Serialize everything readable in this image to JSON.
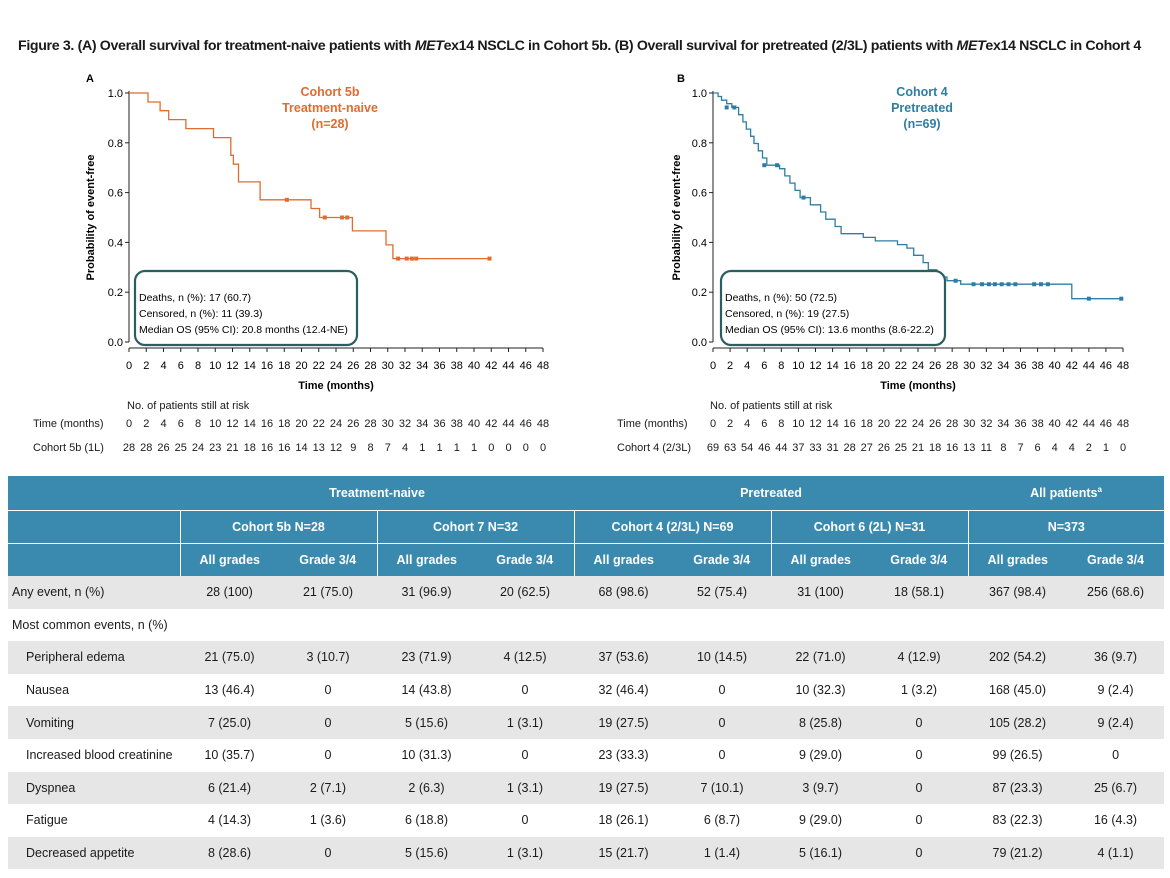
{
  "figure": {
    "title_pre": "Figure 3. (A) Overall survival for treatment-naive patients with ",
    "title_it1": "MET",
    "title_mid": "ex14 NSCLC in Cohort 5b. (B) Overall survival for pretreated (2/3L) patients with ",
    "title_it2": "MET",
    "title_post": "ex14 NSCLC in Cohort 4"
  },
  "chart_data": [
    {
      "type": "line",
      "panel_label": "A",
      "ylabel": "Probability of event-free",
      "xlabel": "Time (months)",
      "xlim": [
        0,
        48
      ],
      "ylim": [
        0,
        1
      ],
      "x_ticks": [
        0,
        2,
        4,
        6,
        8,
        10,
        12,
        14,
        16,
        18,
        20,
        22,
        24,
        26,
        28,
        30,
        32,
        34,
        36,
        38,
        40,
        42,
        44,
        46,
        48
      ],
      "y_ticks": [
        "0.0",
        "0.2",
        "0.4",
        "0.6",
        "0.8",
        "1.0"
      ],
      "color": "#e06c2e",
      "legend": [
        "Cohort 5b",
        "Treatment-naive",
        "(n=28)"
      ],
      "series": [
        {
          "steps": [
            [
              0,
              1.0
            ],
            [
              2.2,
              0.964
            ],
            [
              3.6,
              0.929
            ],
            [
              4.6,
              0.893
            ],
            [
              6.6,
              0.857
            ],
            [
              9.8,
              0.821
            ],
            [
              11.8,
              0.75
            ],
            [
              12.1,
              0.714
            ],
            [
              12.7,
              0.643
            ],
            [
              15.2,
              0.571
            ],
            [
              21.1,
              0.536
            ],
            [
              22.1,
              0.5
            ],
            [
              25.9,
              0.446
            ],
            [
              29.8,
              0.39
            ],
            [
              30.6,
              0.335
            ],
            [
              41.8,
              0.335
            ]
          ],
          "censors": [
            [
              18.3,
              0.571
            ],
            [
              22.7,
              0.5
            ],
            [
              24.7,
              0.5
            ],
            [
              25.3,
              0.5
            ],
            [
              31.2,
              0.335
            ],
            [
              32.2,
              0.335
            ],
            [
              32.8,
              0.335
            ],
            [
              33.3,
              0.335
            ],
            [
              41.8,
              0.335
            ]
          ]
        }
      ],
      "stats": [
        "Deaths, n (%): 17 (60.7)",
        "Censored, n (%): 11 (39.3)",
        "Median OS (95% CI): 20.8 months (12.4-NE)"
      ],
      "risk_table": {
        "header": "No. of patients still at risk",
        "time_label": "Time (months)",
        "row_label": "Cohort 5b (1L)",
        "times": [
          "0",
          "2",
          "4",
          "6",
          "8",
          "10",
          "12",
          "14",
          "16",
          "18",
          "20",
          "22",
          "24",
          "26",
          "28",
          "30",
          "32",
          "34",
          "36",
          "38",
          "40",
          "42",
          "44",
          "46",
          "48"
        ],
        "counts": [
          "28",
          "28",
          "26",
          "25",
          "24",
          "23",
          "21",
          "18",
          "16",
          "16",
          "14",
          "13",
          "12",
          "9",
          "8",
          "7",
          "4",
          "1",
          "1",
          "1",
          "1",
          "0",
          "0",
          "0",
          "0"
        ]
      }
    },
    {
      "type": "line",
      "panel_label": "B",
      "ylabel": "Probability of event-free",
      "xlabel": "Time (months)",
      "xlim": [
        0,
        48
      ],
      "ylim": [
        0,
        1
      ],
      "x_ticks": [
        0,
        2,
        4,
        6,
        8,
        10,
        12,
        14,
        16,
        18,
        20,
        22,
        24,
        26,
        28,
        30,
        32,
        34,
        36,
        38,
        40,
        42,
        44,
        46,
        48
      ],
      "y_ticks": [
        "0.0",
        "0.2",
        "0.4",
        "0.6",
        "0.8",
        "1.0"
      ],
      "color": "#2e7ea3",
      "legend": [
        "Cohort 4",
        "Pretreated",
        "(n=69)"
      ],
      "series": [
        {
          "steps": [
            [
              0,
              1.0
            ],
            [
              0.6,
              0.986
            ],
            [
              1.0,
              0.971
            ],
            [
              1.6,
              0.957
            ],
            [
              2.2,
              0.942
            ],
            [
              3.0,
              0.913
            ],
            [
              3.5,
              0.884
            ],
            [
              3.9,
              0.855
            ],
            [
              4.4,
              0.826
            ],
            [
              4.8,
              0.797
            ],
            [
              5.3,
              0.768
            ],
            [
              5.8,
              0.739
            ],
            [
              6.3,
              0.71
            ],
            [
              7.8,
              0.696
            ],
            [
              8.4,
              0.667
            ],
            [
              9.0,
              0.638
            ],
            [
              9.6,
              0.609
            ],
            [
              10.2,
              0.58
            ],
            [
              11.4,
              0.551
            ],
            [
              12.6,
              0.522
            ],
            [
              13.2,
              0.493
            ],
            [
              14.3,
              0.464
            ],
            [
              15.0,
              0.435
            ],
            [
              17.6,
              0.42
            ],
            [
              19.0,
              0.406
            ],
            [
              21.6,
              0.391
            ],
            [
              22.7,
              0.377
            ],
            [
              23.5,
              0.348
            ],
            [
              24.6,
              0.319
            ],
            [
              25.2,
              0.29
            ],
            [
              26.2,
              0.261
            ],
            [
              27.4,
              0.246
            ],
            [
              29.0,
              0.232
            ],
            [
              42.0,
              0.174
            ],
            [
              47.8,
              0.174
            ]
          ],
          "censors": [
            [
              1.6,
              0.942
            ],
            [
              2.5,
              0.942
            ],
            [
              6.0,
              0.71
            ],
            [
              7.5,
              0.71
            ],
            [
              10.6,
              0.58
            ],
            [
              28.4,
              0.246
            ],
            [
              30.5,
              0.232
            ],
            [
              31.5,
              0.232
            ],
            [
              32.3,
              0.232
            ],
            [
              33.0,
              0.232
            ],
            [
              33.8,
              0.232
            ],
            [
              34.6,
              0.232
            ],
            [
              35.4,
              0.232
            ],
            [
              37.6,
              0.232
            ],
            [
              38.4,
              0.232
            ],
            [
              39.2,
              0.232
            ],
            [
              44.0,
              0.174
            ],
            [
              47.8,
              0.174
            ]
          ]
        }
      ],
      "stats": [
        "Deaths, n (%): 50 (72.5)",
        "Censored, n (%): 19 (27.5)",
        "Median OS (95% CI): 13.6 months (8.6-22.2)"
      ],
      "risk_table": {
        "header": "No. of patients still at risk",
        "time_label": "Time (months)",
        "row_label": "Cohort 4 (2/3L)",
        "times": [
          "0",
          "2",
          "4",
          "6",
          "8",
          "10",
          "12",
          "14",
          "16",
          "18",
          "20",
          "22",
          "24",
          "26",
          "28",
          "30",
          "32",
          "34",
          "36",
          "38",
          "40",
          "42",
          "44",
          "46",
          "48"
        ],
        "counts": [
          "69",
          "63",
          "54",
          "46",
          "44",
          "37",
          "33",
          "31",
          "28",
          "27",
          "26",
          "25",
          "21",
          "18",
          "16",
          "13",
          "11",
          "8",
          "7",
          "6",
          "4",
          "4",
          "2",
          "1",
          "0"
        ]
      }
    }
  ],
  "ae_table": {
    "groups": [
      "Treatment-naive",
      "Pretreated",
      "All patients",
      "a"
    ],
    "cohorts": [
      "Cohort 5b N=28",
      "Cohort 7 N=32",
      "Cohort 4 (2/3L) N=69",
      "Cohort 6 (2L) N=31",
      "N=373"
    ],
    "grade_headers": [
      "All grades",
      "Grade 3/4",
      "All grades",
      "Grade 3/4",
      "All grades",
      "Grade 3/4",
      "All grades",
      "Grade 3/4",
      "All grades",
      "Grade 3/4"
    ],
    "rows": [
      {
        "label": "Any event, n (%)",
        "indent": false,
        "values": [
          "28 (100)",
          "21 (75.0)",
          "31 (96.9)",
          "20 (62.5)",
          "68 (98.6)",
          "52 (75.4)",
          "31 (100)",
          "18 (58.1)",
          "367 (98.4)",
          "256 (68.6)"
        ]
      },
      {
        "label": "Most common events, n (%)",
        "indent": false,
        "values": [
          "",
          "",
          "",
          "",
          "",
          "",
          "",
          "",
          "",
          ""
        ]
      },
      {
        "label": "Peripheral edema",
        "indent": true,
        "values": [
          "21 (75.0)",
          "3 (10.7)",
          "23 (71.9)",
          "4 (12.5)",
          "37 (53.6)",
          "10 (14.5)",
          "22 (71.0)",
          "4 (12.9)",
          "202 (54.2)",
          "36 (9.7)"
        ]
      },
      {
        "label": "Nausea",
        "indent": true,
        "values": [
          "13 (46.4)",
          "0",
          "14 (43.8)",
          "0",
          "32 (46.4)",
          "0",
          "10 (32.3)",
          "1 (3.2)",
          "168 (45.0)",
          "9 (2.4)"
        ]
      },
      {
        "label": "Vomiting",
        "indent": true,
        "values": [
          "7 (25.0)",
          "0",
          "5 (15.6)",
          "1 (3.1)",
          "19 (27.5)",
          "0",
          "8 (25.8)",
          "0",
          "105 (28.2)",
          "9 (2.4)"
        ]
      },
      {
        "label": "Increased blood creatinine",
        "indent": true,
        "values": [
          "10 (35.7)",
          "0",
          "10 (31.3)",
          "0",
          "23 (33.3)",
          "0",
          "9 (29.0)",
          "0",
          "99 (26.5)",
          "0"
        ]
      },
      {
        "label": "Dyspnea",
        "indent": true,
        "values": [
          "6 (21.4)",
          "2 (7.1)",
          "2 (6.3)",
          "1 (3.1)",
          "19 (27.5)",
          "7 (10.1)",
          "3 (9.7)",
          "0",
          "87 (23.3)",
          "25 (6.7)"
        ]
      },
      {
        "label": "Fatigue",
        "indent": true,
        "values": [
          "4 (14.3)",
          "1 (3.6)",
          "6 (18.8)",
          "0",
          "18 (26.1)",
          "6 (8.7)",
          "9 (29.0)",
          "0",
          "83 (22.3)",
          "16 (4.3)"
        ]
      },
      {
        "label": "Decreased appetite",
        "indent": true,
        "values": [
          "8 (28.6)",
          "0",
          "5 (15.6)",
          "1 (3.1)",
          "15 (21.7)",
          "1 (1.4)",
          "5 (16.1)",
          "0",
          "79 (21.2)",
          "4 (1.1)"
        ]
      }
    ]
  }
}
